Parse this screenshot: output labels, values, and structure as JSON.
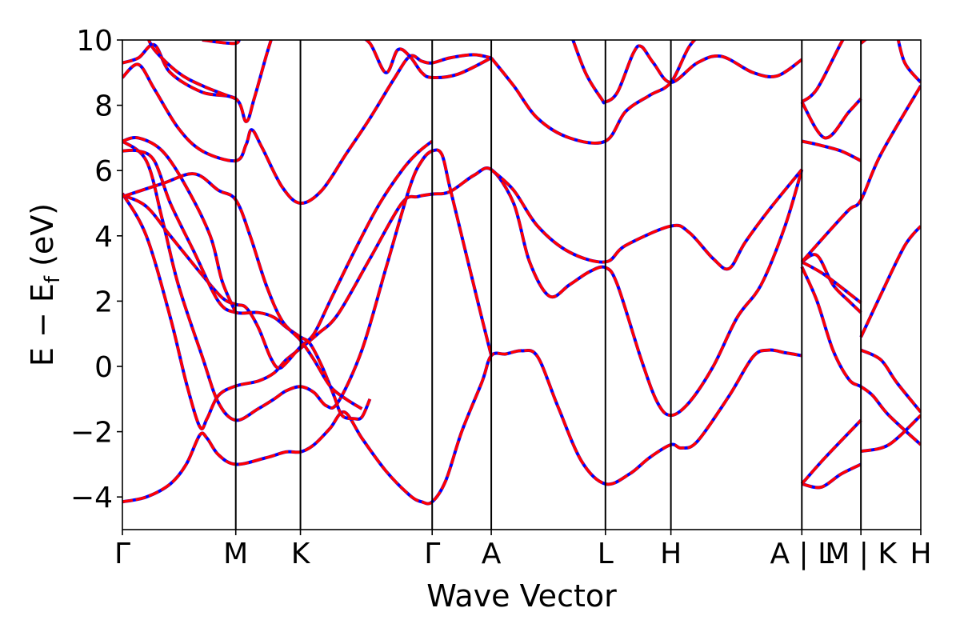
{
  "chart_data": {
    "type": "line",
    "xlabel": "Wave Vector",
    "ylabel_main": "E − E",
    "ylabel_sub": "f",
    "ylabel_unit": " (eV)",
    "ylim": [
      -5,
      10
    ],
    "yticks": [
      -4,
      -2,
      0,
      2,
      4,
      6,
      8,
      10
    ],
    "xlim": [
      0,
      1
    ],
    "kpoints": [
      {
        "label": "Γ",
        "x": 0.0
      },
      {
        "label": "M",
        "x": 0.142
      },
      {
        "label": "K",
        "x": 0.223
      },
      {
        "label": "Γ",
        "x": 0.388
      },
      {
        "label": "A",
        "x": 0.462
      },
      {
        "label": "L",
        "x": 0.605
      },
      {
        "label": "H",
        "x": 0.687
      },
      {
        "label": "A | L",
        "x": 0.851
      },
      {
        "label": "M | K",
        "x": 0.925
      },
      {
        "label": "H",
        "x": 1.0
      }
    ],
    "colors": {
      "series_a": "#0000ff",
      "series_b": "#ff0000",
      "axis": "#000000"
    },
    "bands": [
      [
        [
          0.0,
          -4.15
        ],
        [
          0.03,
          -4.0
        ],
        [
          0.06,
          -3.6
        ],
        [
          0.08,
          -3.0
        ],
        [
          0.097,
          -2.1
        ],
        [
          0.106,
          -2.2
        ],
        [
          0.12,
          -2.7
        ],
        [
          0.142,
          -3.0
        ],
        [
          0.18,
          -2.8
        ],
        [
          0.205,
          -2.62
        ],
        [
          0.223,
          -2.62
        ],
        [
          0.24,
          -2.4
        ],
        [
          0.26,
          -1.9
        ],
        [
          0.278,
          -1.4
        ],
        [
          0.3,
          -2.2
        ],
        [
          0.33,
          -3.2
        ],
        [
          0.36,
          -3.95
        ],
        [
          0.375,
          -4.15
        ],
        [
          0.388,
          -4.15
        ],
        [
          0.405,
          -3.5
        ],
        [
          0.425,
          -2.0
        ],
        [
          0.45,
          -0.5
        ],
        [
          0.462,
          0.33
        ],
        [
          0.48,
          0.38
        ],
        [
          0.5,
          0.48
        ],
        [
          0.52,
          0.3
        ],
        [
          0.545,
          -1.2
        ],
        [
          0.575,
          -2.9
        ],
        [
          0.605,
          -3.6
        ],
        [
          0.635,
          -3.3
        ],
        [
          0.66,
          -2.8
        ],
        [
          0.687,
          -2.4
        ],
        [
          0.7,
          -2.5
        ],
        [
          0.72,
          -2.3
        ],
        [
          0.76,
          -0.9
        ],
        [
          0.79,
          0.3
        ],
        [
          0.81,
          0.5
        ],
        [
          0.83,
          0.42
        ],
        [
          0.851,
          0.33
        ]
      ],
      [
        [
          0.0,
          5.3
        ],
        [
          0.03,
          4.0
        ],
        [
          0.06,
          1.5
        ],
        [
          0.08,
          -0.5
        ],
        [
          0.097,
          -1.85
        ],
        [
          0.106,
          -1.6
        ],
        [
          0.12,
          -0.9
        ],
        [
          0.142,
          -0.6
        ],
        [
          0.17,
          -0.45
        ],
        [
          0.19,
          -0.2
        ],
        [
          0.205,
          0.2
        ],
        [
          0.223,
          0.55
        ],
        [
          0.245,
          1.0
        ],
        [
          0.27,
          1.6
        ],
        [
          0.31,
          3.3
        ],
        [
          0.35,
          5.0
        ],
        [
          0.37,
          5.2
        ],
        [
          0.388,
          5.28
        ],
        [
          0.41,
          5.35
        ],
        [
          0.44,
          5.85
        ],
        [
          0.462,
          6.03
        ],
        [
          0.49,
          5.0
        ],
        [
          0.51,
          3.2
        ],
        [
          0.535,
          2.15
        ],
        [
          0.56,
          2.5
        ],
        [
          0.585,
          2.9
        ],
        [
          0.605,
          3.03
        ],
        [
          0.62,
          2.5
        ],
        [
          0.65,
          0.2
        ],
        [
          0.67,
          -1.1
        ],
        [
          0.687,
          -1.5
        ],
        [
          0.71,
          -1.1
        ],
        [
          0.74,
          0.0
        ],
        [
          0.77,
          1.5
        ],
        [
          0.8,
          2.5
        ],
        [
          0.83,
          4.3
        ],
        [
          0.851,
          6.03
        ]
      ],
      [
        [
          0.0,
          6.9
        ],
        [
          0.03,
          6.3
        ],
        [
          0.05,
          4.5
        ],
        [
          0.07,
          2.5
        ],
        [
          0.1,
          0.3
        ],
        [
          0.12,
          -1.1
        ],
        [
          0.142,
          -1.65
        ],
        [
          0.17,
          -1.3
        ],
        [
          0.19,
          -1.0
        ],
        [
          0.205,
          -0.75
        ],
        [
          0.223,
          -0.62
        ],
        [
          0.24,
          -0.8
        ],
        [
          0.255,
          -1.2
        ],
        [
          0.27,
          -1.1
        ],
        [
          0.3,
          0.5
        ],
        [
          0.33,
          3.0
        ],
        [
          0.36,
          5.5
        ],
        [
          0.375,
          6.3
        ],
        [
          0.388,
          6.6
        ],
        [
          0.4,
          6.5
        ],
        [
          0.41,
          5.5
        ],
        [
          0.43,
          3.5
        ],
        [
          0.45,
          1.5
        ],
        [
          0.462,
          0.33
        ]
      ],
      [
        [
          0.0,
          5.25
        ],
        [
          0.03,
          4.9
        ],
        [
          0.06,
          4.0
        ],
        [
          0.1,
          2.8
        ],
        [
          0.125,
          2.1
        ],
        [
          0.142,
          1.9
        ],
        [
          0.155,
          1.8
        ],
        [
          0.17,
          1.2
        ],
        [
          0.185,
          0.3
        ],
        [
          0.195,
          -0.05
        ],
        [
          0.205,
          0.1
        ],
        [
          0.223,
          0.6
        ],
        [
          0.24,
          1.0
        ],
        [
          0.26,
          2.0
        ],
        [
          0.29,
          3.5
        ],
        [
          0.32,
          4.9
        ],
        [
          0.35,
          6.0
        ],
        [
          0.37,
          6.55
        ],
        [
          0.388,
          6.9
        ]
      ],
      [
        [
          0.0,
          6.6
        ],
        [
          0.02,
          6.6
        ],
        [
          0.04,
          6.3
        ],
        [
          0.06,
          5.0
        ],
        [
          0.09,
          3.5
        ],
        [
          0.12,
          2.0
        ],
        [
          0.142,
          1.65
        ],
        [
          0.17,
          1.65
        ],
        [
          0.19,
          1.5
        ],
        [
          0.205,
          1.2
        ],
        [
          0.223,
          0.9
        ],
        [
          0.235,
          0.7
        ],
        [
          0.25,
          0.0
        ],
        [
          0.265,
          -0.9
        ],
        [
          0.275,
          -1.5
        ],
        [
          0.29,
          -1.6
        ],
        [
          0.3,
          -1.55
        ],
        [
          0.31,
          -1.0
        ]
      ],
      [
        [
          0.0,
          6.9
        ],
        [
          0.02,
          7.0
        ],
        [
          0.05,
          6.6
        ],
        [
          0.08,
          5.5
        ],
        [
          0.11,
          4.0
        ],
        [
          0.125,
          2.6
        ],
        [
          0.142,
          1.65
        ]
      ],
      [
        [
          0.0,
          8.85
        ],
        [
          0.02,
          9.25
        ],
        [
          0.04,
          8.5
        ],
        [
          0.07,
          7.3
        ],
        [
          0.1,
          6.6
        ],
        [
          0.142,
          6.3
        ],
        [
          0.155,
          6.8
        ],
        [
          0.162,
          7.25
        ],
        [
          0.175,
          6.7
        ],
        [
          0.2,
          5.5
        ],
        [
          0.223,
          5.0
        ],
        [
          0.25,
          5.4
        ],
        [
          0.28,
          6.5
        ],
        [
          0.31,
          7.6
        ],
        [
          0.34,
          8.8
        ],
        [
          0.36,
          9.5
        ],
        [
          0.375,
          9.35
        ],
        [
          0.388,
          9.3
        ],
        [
          0.41,
          9.45
        ],
        [
          0.44,
          9.55
        ],
        [
          0.462,
          9.45
        ]
      ],
      [
        [
          0.0,
          9.3
        ],
        [
          0.02,
          9.45
        ],
        [
          0.04,
          9.85
        ],
        [
          0.06,
          9.0
        ],
        [
          0.1,
          8.4
        ],
        [
          0.142,
          8.2
        ],
        [
          0.155,
          7.5
        ],
        [
          0.165,
          8.2
        ],
        [
          0.18,
          9.5
        ],
        [
          0.19,
          10.3
        ]
      ],
      [
        [
          0.0,
          5.2
        ],
        [
          0.05,
          5.6
        ],
        [
          0.09,
          5.9
        ],
        [
          0.12,
          5.4
        ],
        [
          0.142,
          5.1
        ],
        [
          0.16,
          4.0
        ],
        [
          0.18,
          2.5
        ],
        [
          0.2,
          1.4
        ],
        [
          0.223,
          0.8
        ],
        [
          0.24,
          0.2
        ],
        [
          0.26,
          -0.6
        ],
        [
          0.28,
          -1.0
        ],
        [
          0.3,
          -1.3
        ]
      ],
      [
        [
          0.03,
          10.2
        ],
        [
          0.04,
          9.7
        ],
        [
          0.07,
          9.0
        ],
        [
          0.1,
          8.6
        ],
        [
          0.142,
          8.2
        ]
      ],
      [
        [
          0.1,
          10.0
        ],
        [
          0.142,
          9.9
        ],
        [
          0.145,
          10.2
        ]
      ],
      [
        [
          0.29,
          10.2
        ],
        [
          0.31,
          9.9
        ],
        [
          0.33,
          9.0
        ],
        [
          0.345,
          9.7
        ],
        [
          0.36,
          9.5
        ],
        [
          0.375,
          9.0
        ],
        [
          0.388,
          8.85
        ],
        [
          0.42,
          8.95
        ],
        [
          0.462,
          9.45
        ]
      ],
      [
        [
          0.462,
          6.03
        ],
        [
          0.49,
          5.4
        ],
        [
          0.52,
          4.3
        ],
        [
          0.56,
          3.5
        ],
        [
          0.605,
          3.2
        ],
        [
          0.63,
          3.7
        ],
        [
          0.687,
          4.3
        ],
        [
          0.71,
          4.1
        ],
        [
          0.74,
          3.3
        ],
        [
          0.76,
          3.0
        ],
        [
          0.78,
          3.8
        ],
        [
          0.81,
          4.8
        ],
        [
          0.851,
          6.03
        ]
      ],
      [
        [
          0.56,
          10.3
        ],
        [
          0.58,
          9.0
        ],
        [
          0.6,
          8.2
        ],
        [
          0.605,
          8.1
        ],
        [
          0.62,
          8.4
        ],
        [
          0.64,
          9.6
        ],
        [
          0.65,
          9.8
        ],
        [
          0.665,
          9.3
        ],
        [
          0.687,
          8.7
        ],
        [
          0.72,
          9.3
        ],
        [
          0.75,
          9.5
        ],
        [
          0.79,
          9.0
        ],
        [
          0.82,
          8.9
        ],
        [
          0.851,
          9.4
        ]
      ],
      [
        [
          0.462,
          9.45
        ],
        [
          0.49,
          8.6
        ],
        [
          0.52,
          7.6
        ],
        [
          0.56,
          7.0
        ],
        [
          0.605,
          6.9
        ],
        [
          0.63,
          7.8
        ],
        [
          0.66,
          8.3
        ],
        [
          0.687,
          8.7
        ],
        [
          0.71,
          9.8
        ],
        [
          0.73,
          10.3
        ]
      ],
      [
        [
          0.851,
          -3.6
        ],
        [
          0.875,
          -3.7
        ],
        [
          0.9,
          -3.3
        ],
        [
          0.925,
          -3.0
        ]
      ],
      [
        [
          0.851,
          -3.6
        ],
        [
          0.88,
          -2.8
        ],
        [
          0.925,
          -1.65
        ]
      ],
      [
        [
          0.851,
          3.05
        ],
        [
          0.87,
          2.0
        ],
        [
          0.89,
          0.5
        ],
        [
          0.91,
          -0.4
        ],
        [
          0.925,
          -0.62
        ],
        [
          0.94,
          -0.9
        ],
        [
          0.96,
          -1.5
        ],
        [
          1.0,
          -2.4
        ]
      ],
      [
        [
          0.851,
          3.2
        ],
        [
          0.87,
          3.4
        ],
        [
          0.89,
          2.5
        ],
        [
          0.91,
          2.0
        ],
        [
          0.925,
          1.65
        ]
      ],
      [
        [
          0.851,
          3.2
        ],
        [
          0.88,
          2.8
        ],
        [
          0.925,
          1.95
        ]
      ],
      [
        [
          0.851,
          6.9
        ],
        [
          0.87,
          6.8
        ],
        [
          0.9,
          6.6
        ],
        [
          0.925,
          6.3
        ]
      ],
      [
        [
          0.851,
          8.1
        ],
        [
          0.87,
          8.5
        ],
        [
          0.9,
          9.9
        ],
        [
          0.91,
          10.3
        ]
      ],
      [
        [
          0.851,
          3.2
        ],
        [
          0.88,
          4.0
        ],
        [
          0.91,
          4.8
        ],
        [
          0.925,
          5.1
        ],
        [
          0.95,
          6.5
        ],
        [
          1.0,
          8.6
        ]
      ],
      [
        [
          0.851,
          8.1
        ],
        [
          0.88,
          7.0
        ],
        [
          0.91,
          7.8
        ],
        [
          0.925,
          8.2
        ]
      ],
      [
        [
          0.925,
          0.9
        ],
        [
          0.95,
          2.2
        ],
        [
          0.98,
          3.7
        ],
        [
          1.0,
          4.3
        ]
      ],
      [
        [
          0.925,
          0.5
        ],
        [
          0.95,
          0.2
        ],
        [
          0.97,
          -0.5
        ],
        [
          1.0,
          -1.4
        ]
      ],
      [
        [
          0.925,
          -2.6
        ],
        [
          0.96,
          -2.4
        ],
        [
          1.0,
          -1.5
        ]
      ],
      [
        [
          0.925,
          9.9
        ],
        [
          0.95,
          10.4
        ]
      ],
      [
        [
          0.97,
          10.2
        ],
        [
          0.98,
          9.3
        ],
        [
          1.0,
          8.7
        ]
      ]
    ]
  }
}
